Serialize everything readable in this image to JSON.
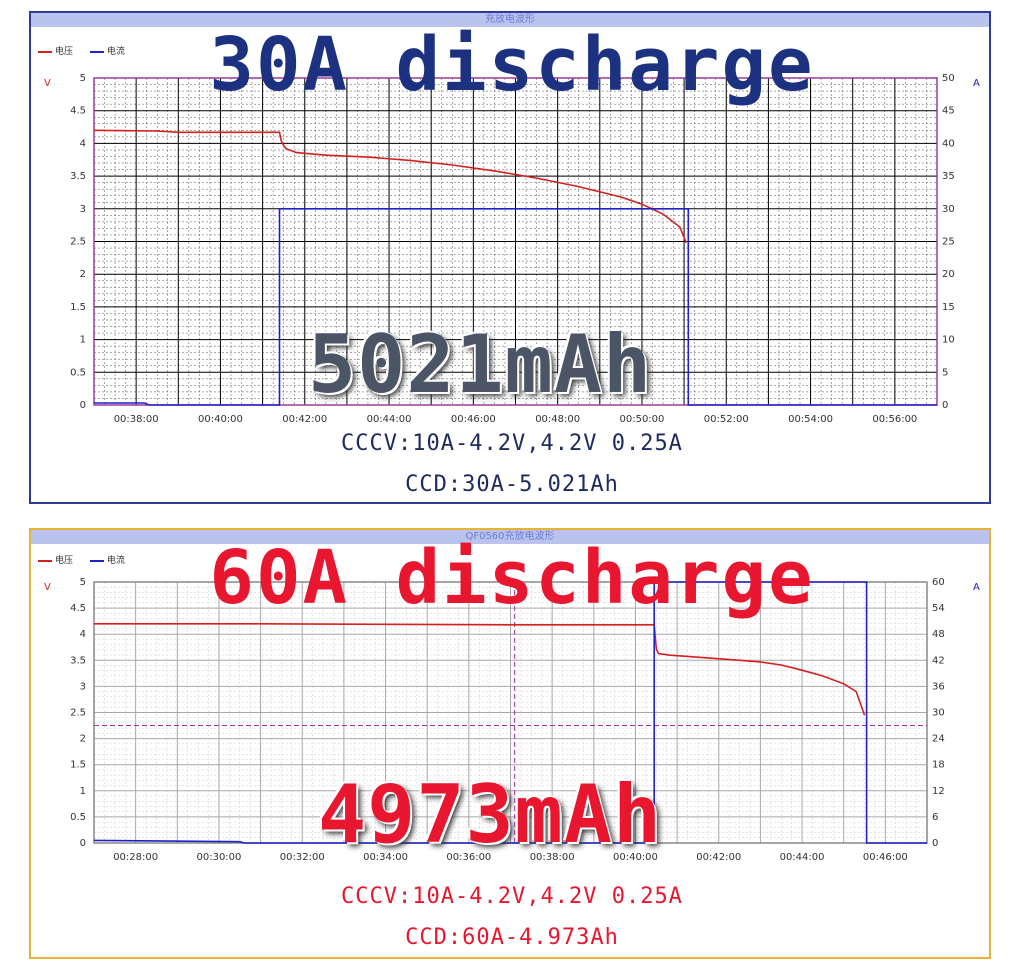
{
  "panels": [
    {
      "window_title": "充放电波形",
      "big_title": "30A discharge",
      "capacity_label": "5021mAh",
      "spec_line1": "CCCV:10A-4.2V,4.2V 0.25A",
      "spec_line2": "CCD:30A-5.021Ah"
    },
    {
      "window_title": "QF0560充放电波形",
      "big_title": "60A discharge",
      "capacity_label": "4973mAh",
      "spec_line1": "CCCV:10A-4.2V,4.2V 0.25A",
      "spec_line2": "CCD:60A-4.973Ah"
    }
  ],
  "chart_data": [
    {
      "type": "line",
      "title": "充放电波形",
      "legend": [
        "电压",
        "电流"
      ],
      "legend_position": "top-left",
      "ylabel_left": "V",
      "ylabel_right": "A",
      "x_range_minutes": [
        37.0,
        57.0
      ],
      "x_ticks": [
        "00:38:00",
        "00:40:00",
        "00:42:00",
        "00:44:00",
        "00:46:00",
        "00:48:00",
        "00:50:00",
        "00:52:00",
        "00:54:00",
        "00:56:00"
      ],
      "x_tick_minutes": [
        38,
        40,
        42,
        44,
        46,
        48,
        50,
        52,
        54,
        56
      ],
      "y_left_ticks": [
        "0",
        "0.5",
        "1",
        "1.5",
        "2",
        "2.5",
        "3",
        "3.5",
        "4",
        "4.5",
        "5"
      ],
      "y_left_range": [
        0,
        5
      ],
      "y_right_ticks": [
        "0",
        "5",
        "10",
        "15",
        "20",
        "25",
        "30",
        "35",
        "40",
        "45",
        "50"
      ],
      "y_right_range": [
        0,
        50
      ],
      "grid": true,
      "grid_color": "#000000",
      "series": [
        {
          "name": "电压",
          "axis": "left",
          "color": "#d62020",
          "x": [
            37.0,
            38.5,
            39.0,
            40.5,
            41.4,
            41.45,
            41.55,
            41.8,
            42.5,
            43.5,
            44.5,
            45.5,
            46.5,
            47.5,
            48.5,
            49.5,
            50.0,
            50.5,
            50.9,
            51.05
          ],
          "y": [
            4.2,
            4.19,
            4.17,
            4.17,
            4.17,
            4.02,
            3.92,
            3.86,
            3.82,
            3.79,
            3.74,
            3.67,
            3.58,
            3.47,
            3.34,
            3.18,
            3.07,
            2.92,
            2.72,
            2.48
          ]
        },
        {
          "name": "电流",
          "axis": "right",
          "color": "#2020c8",
          "x": [
            37.0,
            38.2,
            38.3,
            41.4,
            41.4,
            51.1,
            51.1,
            57.0
          ],
          "y": [
            0.3,
            0.3,
            0,
            0,
            30,
            30,
            0,
            0
          ]
        }
      ]
    },
    {
      "type": "line",
      "title": "QF0560充放电波形",
      "legend": [
        "电压",
        "电流"
      ],
      "legend_position": "top-left",
      "ylabel_left": "V",
      "ylabel_right": "A",
      "x_range_minutes": [
        27.0,
        47.0
      ],
      "x_ticks": [
        "00:28:00",
        "00:30:00",
        "00:32:00",
        "00:34:00",
        "00:36:00",
        "00:38:00",
        "00:40:00",
        "00:42:00",
        "00:44:00",
        "00:46:00"
      ],
      "x_tick_minutes": [
        28,
        30,
        32,
        34,
        36,
        38,
        40,
        42,
        44,
        46
      ],
      "y_left_ticks": [
        "0",
        "0.5",
        "1",
        "1.5",
        "2",
        "2.5",
        "3",
        "3.5",
        "4",
        "4.5",
        "5"
      ],
      "y_left_range": [
        0,
        5
      ],
      "y_right_ticks": [
        "0",
        "6",
        "12",
        "18",
        "24",
        "30",
        "36",
        "42",
        "48",
        "54",
        "60"
      ],
      "y_right_range": [
        0,
        60
      ],
      "grid": true,
      "grid_color": "#b8b8b8",
      "cursor_x_minute": 37.1,
      "cursor_y_left": 2.25,
      "series": [
        {
          "name": "电压",
          "axis": "left",
          "color": "#d62020",
          "x": [
            27.0,
            31.0,
            34.0,
            37.0,
            40.45,
            40.5,
            40.55,
            40.8,
            41.5,
            42.5,
            43.0,
            43.5,
            44.0,
            44.5,
            45.0,
            45.3,
            45.5
          ],
          "y": [
            4.2,
            4.2,
            4.19,
            4.18,
            4.18,
            3.72,
            3.63,
            3.6,
            3.56,
            3.5,
            3.47,
            3.41,
            3.31,
            3.2,
            3.05,
            2.9,
            2.45
          ]
        },
        {
          "name": "电流",
          "axis": "right",
          "color": "#2020c8",
          "x": [
            27.0,
            30.5,
            30.6,
            40.45,
            40.45,
            45.55,
            45.55,
            47.0
          ],
          "y": [
            0.6,
            0.3,
            0,
            0,
            60,
            60,
            0,
            0
          ]
        }
      ]
    }
  ]
}
